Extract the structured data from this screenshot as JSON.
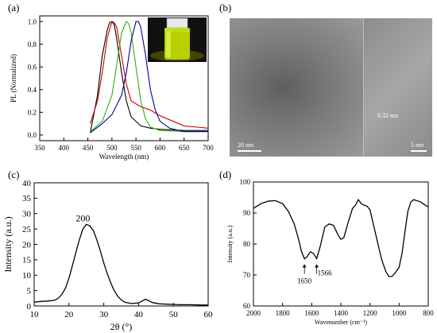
{
  "panels": {
    "a": {
      "label": "(a)"
    },
    "b": {
      "label": "(b)"
    },
    "c": {
      "label": "(c)"
    },
    "d": {
      "label": "(d)"
    }
  },
  "tem": {
    "scale_main": "20 nm",
    "scale_inset": "5 nm",
    "lattice": "0.32 nm"
  },
  "chart_data": [
    {
      "type": "line",
      "panel": "a",
      "xlabel": "Wavelength (nm)",
      "ylabel": "PL (Normalized)",
      "xlim": [
        350,
        700
      ],
      "ylim": [
        -0.05,
        1.05
      ],
      "xticks": [
        350,
        400,
        450,
        500,
        550,
        600,
        650,
        700
      ],
      "yticks": [
        0.0,
        0.2,
        0.4,
        0.6,
        0.8,
        1.0
      ],
      "xtick_labels": [
        "350",
        "400",
        "450",
        "500",
        "550",
        "600",
        "650",
        "700"
      ],
      "ytick_labels": [
        "0.0",
        "0.2",
        "0.4",
        "0.6",
        "0.8",
        "1.0"
      ],
      "colors": [
        "#000000",
        "#cc0000",
        "#33aa11",
        "#000099"
      ],
      "series": [
        {
          "x": [
            455,
            470,
            480,
            490,
            495,
            500,
            505,
            510,
            520,
            530,
            540,
            560,
            580,
            600,
            650,
            700
          ],
          "y": [
            0.02,
            0.35,
            0.7,
            0.92,
            0.99,
            1.0,
            0.97,
            0.85,
            0.55,
            0.3,
            0.16,
            0.08,
            0.06,
            0.05,
            0.04,
            0.04
          ]
        },
        {
          "x": [
            455,
            470,
            480,
            490,
            500,
            505,
            510,
            520,
            530,
            540,
            560,
            580,
            600,
            650,
            700
          ],
          "y": [
            0.1,
            0.3,
            0.55,
            0.85,
            1.0,
            0.99,
            0.95,
            0.7,
            0.45,
            0.3,
            0.25,
            0.22,
            0.17,
            0.08,
            0.06
          ]
        },
        {
          "x": [
            455,
            480,
            500,
            510,
            520,
            530,
            535,
            540,
            550,
            560,
            570,
            580,
            600,
            650,
            700
          ],
          "y": [
            0.03,
            0.12,
            0.35,
            0.62,
            0.9,
            1.0,
            0.98,
            0.9,
            0.6,
            0.3,
            0.14,
            0.07,
            0.04,
            0.03,
            0.03
          ]
        },
        {
          "x": [
            455,
            480,
            500,
            520,
            530,
            540,
            550,
            555,
            560,
            570,
            580,
            590,
            600,
            620,
            650,
            700
          ],
          "y": [
            0.02,
            0.1,
            0.18,
            0.35,
            0.55,
            0.83,
            1.0,
            1.0,
            0.95,
            0.7,
            0.4,
            0.22,
            0.12,
            0.06,
            0.03,
            0.03
          ]
        }
      ]
    },
    {
      "type": "line",
      "panel": "c",
      "xlabel": "2θ (°)",
      "ylabel": "Intensity (a.u.)",
      "xlim": [
        10,
        60
      ],
      "ylim": [
        0,
        40
      ],
      "xticks": [
        10,
        20,
        30,
        40,
        50,
        60
      ],
      "yticks": [
        0,
        5,
        10,
        15,
        20,
        25,
        30,
        35,
        40
      ],
      "xtick_labels": [
        "10",
        "20",
        "30",
        "40",
        "50",
        "60"
      ],
      "ytick_labels": [
        "0",
        "5",
        "10",
        "15",
        "20",
        "25",
        "30",
        "35",
        "40"
      ],
      "annotations": [
        {
          "text": "200",
          "x": 24,
          "y": 27.5
        }
      ],
      "x": [
        10,
        12,
        14,
        16,
        17,
        18,
        19,
        20,
        21,
        22,
        23,
        24,
        25,
        26,
        27,
        28,
        29,
        30,
        31,
        32,
        33,
        34,
        35,
        36,
        38,
        40,
        41,
        42,
        43,
        44,
        46,
        48,
        50,
        52,
        55,
        58,
        60
      ],
      "y": [
        1.2,
        1.5,
        1.6,
        1.9,
        2.6,
        3.8,
        5.8,
        9.0,
        13.2,
        17.5,
        21.5,
        25.0,
        26.5,
        26.0,
        24.5,
        21.5,
        18.0,
        14.0,
        10.5,
        7.5,
        5.0,
        3.2,
        2.0,
        1.2,
        0.8,
        1.0,
        1.6,
        2.2,
        1.7,
        1.1,
        0.7,
        0.6,
        0.5,
        0.4,
        0.4,
        0.3,
        0.3
      ]
    },
    {
      "type": "line",
      "panel": "d",
      "xlabel": "Wavenumber (cm⁻¹)",
      "ylabel": "Intensity (a.u.)",
      "xlim": [
        2000,
        800
      ],
      "ylim": [
        60,
        100
      ],
      "xticks": [
        2000,
        1800,
        1600,
        1400,
        1200,
        1000,
        800
      ],
      "yticks": [
        60,
        70,
        80,
        90,
        100
      ],
      "xtick_labels": [
        "2000",
        "1800",
        "1600",
        "1400",
        "1200",
        "1000",
        "800"
      ],
      "ytick_labels": [
        "60",
        "70",
        "80",
        "90",
        "100"
      ],
      "annotations": [
        {
          "text": "1650",
          "x": 1650,
          "y": 75
        },
        {
          "text": "1566",
          "x": 1566,
          "y": 75
        }
      ],
      "x": [
        2000,
        1950,
        1900,
        1850,
        1800,
        1760,
        1720,
        1690,
        1670,
        1650,
        1630,
        1610,
        1590,
        1566,
        1540,
        1510,
        1480,
        1450,
        1420,
        1400,
        1380,
        1350,
        1320,
        1300,
        1280,
        1260,
        1240,
        1220,
        1200,
        1180,
        1150,
        1120,
        1090,
        1070,
        1050,
        1030,
        1000,
        980,
        960,
        940,
        920,
        900,
        880,
        850,
        820,
        800
      ],
      "y": [
        91.5,
        93.0,
        93.8,
        94.0,
        93.0,
        90.5,
        86.5,
        81.5,
        77.5,
        75.2,
        76.0,
        77.5,
        77.0,
        75.3,
        79.5,
        85.5,
        86.5,
        86.0,
        83.0,
        81.5,
        82.0,
        87.0,
        91.5,
        92.5,
        94.3,
        93.0,
        92.5,
        92.2,
        91.0,
        87.0,
        81.0,
        75.0,
        71.0,
        69.5,
        69.5,
        70.5,
        72.5,
        77.0,
        84.0,
        90.5,
        93.5,
        94.3,
        94.0,
        93.5,
        92.5,
        92.0
      ]
    }
  ]
}
